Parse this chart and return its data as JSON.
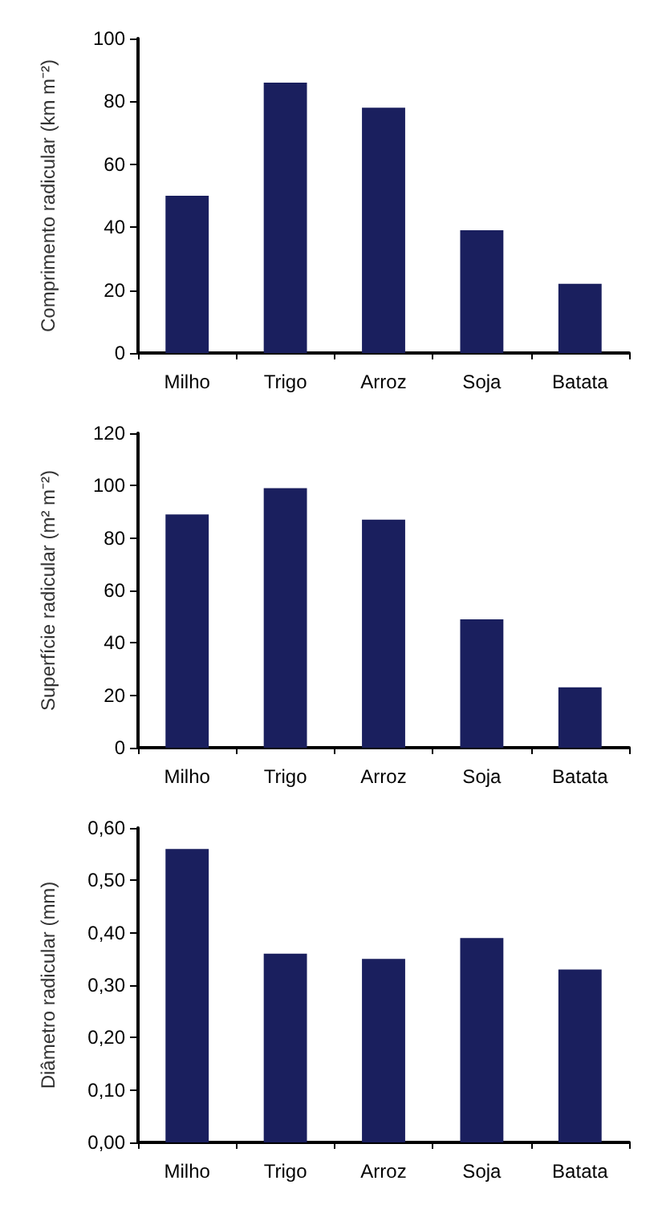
{
  "chart_data": [
    {
      "type": "bar",
      "ylabel": "Comprimento radicular (km m⁻²)",
      "categories": [
        "Milho",
        "Trigo",
        "Arroz",
        "Soja",
        "Batata"
      ],
      "values": [
        50,
        86,
        78,
        39,
        22
      ],
      "color": "#1a1f5e",
      "ylim": [
        0,
        100
      ],
      "yticks": [
        0,
        20,
        40,
        60,
        80,
        100
      ],
      "grid": false
    },
    {
      "type": "bar",
      "ylabel": "Superfície radicular (m² m⁻²)",
      "categories": [
        "Milho",
        "Trigo",
        "Arroz",
        "Soja",
        "Batata"
      ],
      "values": [
        89,
        99,
        87,
        49,
        23
      ],
      "color": "#1a1f5e",
      "ylim": [
        0,
        120
      ],
      "yticks": [
        0,
        20,
        40,
        60,
        80,
        100,
        120
      ],
      "grid": false
    },
    {
      "type": "bar",
      "ylabel": "Diâmetro radicular (mm)",
      "categories": [
        "Milho",
        "Trigo",
        "Arroz",
        "Soja",
        "Batata"
      ],
      "values": [
        0.56,
        0.36,
        0.35,
        0.39,
        0.33
      ],
      "color": "#1a1f5e",
      "ylim": [
        0,
        0.6
      ],
      "yticks": [
        {
          "value": 0,
          "label": "0,00"
        },
        {
          "value": 0.1,
          "label": "0,10"
        },
        {
          "value": 0.2,
          "label": "0,20"
        },
        {
          "value": 0.3,
          "label": "0,30"
        },
        {
          "value": 0.4,
          "label": "0,40"
        },
        {
          "value": 0.5,
          "label": "0,50"
        },
        {
          "value": 0.6,
          "label": "0,60"
        }
      ],
      "grid": false
    }
  ]
}
